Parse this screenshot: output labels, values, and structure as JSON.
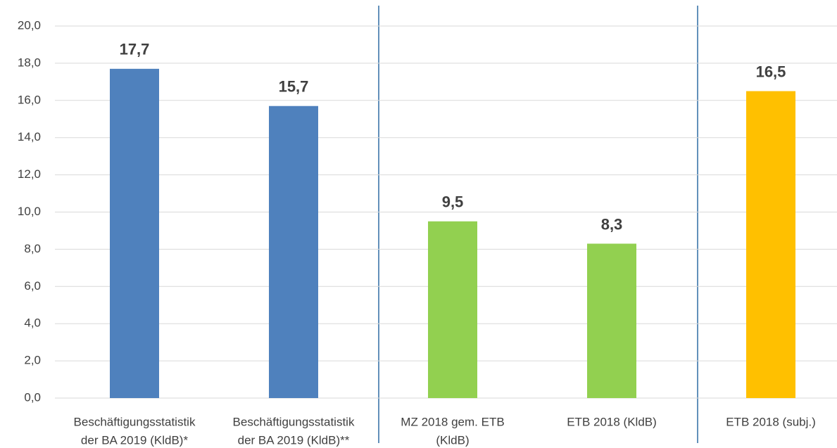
{
  "chart_data": {
    "type": "bar",
    "categories": [
      [
        "Beschäftigungsstatistik",
        "der BA 2019 (KldB)*"
      ],
      [
        "Beschäftigungsstatistik",
        "der BA 2019 (KldB)**"
      ],
      [
        "MZ 2018 gem. ETB",
        "(KldB)"
      ],
      [
        "ETB 2018 (KldB)"
      ],
      [
        "ETB 2018 (subj.)"
      ]
    ],
    "values": [
      17.7,
      15.7,
      9.5,
      8.3,
      16.5
    ],
    "value_labels": [
      "17,7",
      "15,7",
      "9,5",
      "8,3",
      "16,5"
    ],
    "colors": [
      "#4f81bd",
      "#4f81bd",
      "#92d050",
      "#92d050",
      "#ffc000"
    ],
    "ylim": [
      0,
      20
    ],
    "yticks": [
      {
        "value": 0,
        "label": "0,0"
      },
      {
        "value": 2,
        "label": "2,0"
      },
      {
        "value": 4,
        "label": "4,0"
      },
      {
        "value": 6,
        "label": "6,0"
      },
      {
        "value": 8,
        "label": "8,0"
      },
      {
        "value": 10,
        "label": "10,0"
      },
      {
        "value": 12,
        "label": "12,0"
      },
      {
        "value": 14,
        "label": "14,0"
      },
      {
        "value": 16,
        "label": "16,0"
      },
      {
        "value": 18,
        "label": "18,0"
      },
      {
        "value": 20,
        "label": "20,0"
      }
    ],
    "grid": true
  }
}
